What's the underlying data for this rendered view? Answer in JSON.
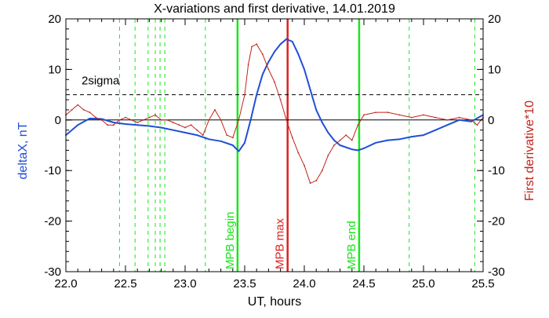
{
  "chart_data": {
    "type": "line",
    "title": "X-variations and first derivative, 14.01.2019",
    "xlabel": "UT, hours",
    "ylabel_left": "deltaX, nT",
    "ylabel_right": "First derivative*10",
    "xlim": [
      22.0,
      25.5
    ],
    "ylim_left": [
      -30,
      20
    ],
    "ylim_right": [
      -30,
      20
    ],
    "x_ticks": [
      "22.0",
      "22.5",
      "23.0",
      "23.5",
      "24.0",
      "24.5",
      "25.0",
      "25.5"
    ],
    "y_ticks_left": [
      "20",
      "10",
      "0",
      "-10",
      "-20",
      "-30"
    ],
    "y_ticks_right": [
      "20",
      "10",
      "0",
      "-10",
      "-20",
      "-30"
    ],
    "grid": false,
    "colors": {
      "deltaX": "#1f4fd6",
      "derivative": "#c0241a",
      "mpb_lines": "#19e619",
      "mpb_max": "#e02020",
      "threshold": "#000000"
    },
    "series": [
      {
        "key": "deltaX",
        "axis": "left",
        "x": [
          22.0,
          22.1,
          22.2,
          22.3,
          22.4,
          22.5,
          22.6,
          22.7,
          22.8,
          22.9,
          23.0,
          23.1,
          23.2,
          23.3,
          23.4,
          23.45,
          23.5,
          23.55,
          23.6,
          23.65,
          23.7,
          23.75,
          23.8,
          23.85,
          23.9,
          23.95,
          24.0,
          24.05,
          24.1,
          24.15,
          24.2,
          24.25,
          24.3,
          24.4,
          24.45,
          24.5,
          24.6,
          24.7,
          24.8,
          24.9,
          25.0,
          25.1,
          25.2,
          25.3,
          25.4,
          25.5
        ],
        "y": [
          -3.0,
          -1.0,
          0.3,
          0.2,
          -0.5,
          -0.8,
          -1.0,
          -1.2,
          -1.5,
          -2.0,
          -2.5,
          -3.0,
          -3.8,
          -4.2,
          -5.0,
          -6.2,
          -4.5,
          0.0,
          5.0,
          9.0,
          11.5,
          13.5,
          15.0,
          16.0,
          15.5,
          13.0,
          10.0,
          6.0,
          2.0,
          -0.5,
          -2.5,
          -4.0,
          -5.0,
          -5.8,
          -6.0,
          -5.6,
          -4.5,
          -4.0,
          -3.8,
          -3.3,
          -3.0,
          -2.0,
          -1.0,
          0.0,
          -0.3,
          1.0
        ]
      },
      {
        "key": "derivative",
        "axis": "right",
        "x": [
          22.0,
          22.05,
          22.1,
          22.15,
          22.2,
          22.25,
          22.3,
          22.35,
          22.4,
          22.45,
          22.5,
          22.55,
          22.6,
          22.65,
          22.7,
          22.75,
          22.8,
          22.85,
          22.9,
          22.95,
          23.0,
          23.05,
          23.1,
          23.15,
          23.2,
          23.25,
          23.3,
          23.35,
          23.4,
          23.45,
          23.5,
          23.53,
          23.56,
          23.6,
          23.65,
          23.7,
          23.75,
          23.8,
          23.85,
          23.9,
          23.95,
          24.0,
          24.05,
          24.1,
          24.15,
          24.2,
          24.25,
          24.3,
          24.35,
          24.4,
          24.45,
          24.5,
          24.6,
          24.7,
          24.8,
          24.9,
          25.0,
          25.1,
          25.2,
          25.3,
          25.4,
          25.45,
          25.5
        ],
        "y": [
          1.0,
          2.0,
          3.0,
          2.0,
          1.5,
          0.5,
          0.0,
          -1.0,
          -1.0,
          0.0,
          0.5,
          0.0,
          -0.5,
          0.0,
          0.5,
          1.0,
          0.0,
          0.0,
          -0.5,
          -1.0,
          -1.5,
          -1.0,
          -2.0,
          -3.0,
          0.0,
          2.0,
          0.0,
          -3.0,
          -3.5,
          0.0,
          5.0,
          11.0,
          14.5,
          15.0,
          13.0,
          10.0,
          7.5,
          4.0,
          0.0,
          -3.5,
          -6.5,
          -9.0,
          -12.5,
          -12.0,
          -10.0,
          -7.0,
          -5.0,
          -4.0,
          -3.0,
          -4.0,
          -1.0,
          1.0,
          1.5,
          1.5,
          1.0,
          0.5,
          1.0,
          0.5,
          0.0,
          0.5,
          0.0,
          -1.0,
          0.5
        ]
      }
    ],
    "hlines": [
      {
        "key": "zero",
        "y": 0,
        "style": "solid"
      },
      {
        "key": "2sigma",
        "y": 5,
        "style": "dashed",
        "label": "2sigma"
      }
    ],
    "vlines_dashed": [
      22.45,
      22.58,
      22.69,
      22.75,
      22.79,
      22.83,
      23.17,
      24.88,
      25.43
    ],
    "vlines_marked": [
      {
        "key": "mpb-begin",
        "x": 23.44,
        "label": "MPB begin",
        "color": "#19e619"
      },
      {
        "key": "mpb-max",
        "x": 23.86,
        "label": "MPB max",
        "color": "#e02020"
      },
      {
        "key": "mpb-end",
        "x": 24.46,
        "label": "MPB end",
        "color": "#19e619"
      }
    ]
  }
}
